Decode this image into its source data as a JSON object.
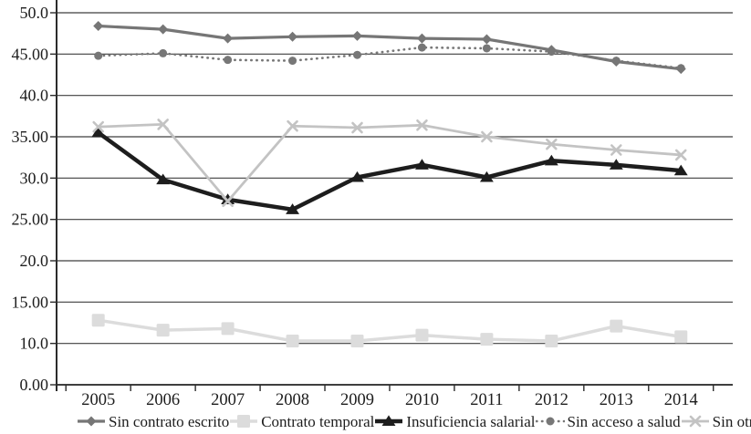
{
  "figure": {
    "background": "#ffffff",
    "grid_color": "#3f3f3f",
    "axis_color": "#2b2b2b",
    "text_color": "#1d1d1d"
  },
  "chart_data": {
    "type": "line",
    "title": "",
    "xlabel": "",
    "ylabel": "",
    "grid": "horizontal",
    "legend_position": "bottom",
    "categories": [
      "2005",
      "2006",
      "2007",
      "2008",
      "2009",
      "2010",
      "2011",
      "2012",
      "2013",
      "2014"
    ],
    "y_axis": {
      "tick_labels_top_to_bottom": [
        "50.0",
        "45.00",
        "40.0",
        "35.00",
        "30.0",
        "25.00",
        "20.0",
        "15.00",
        "10.0",
        "0.00"
      ],
      "unit_per_step": 5
    },
    "series": [
      {
        "name": "Sin contrato escrito",
        "marker": "diamond",
        "line_style": "solid",
        "color": "#767676",
        "line_width": 3.2,
        "marker_size": 11,
        "values": [
          48.4,
          48.0,
          46.9,
          47.1,
          47.2,
          46.9,
          46.8,
          45.5,
          44.1,
          43.2
        ]
      },
      {
        "name": "Contrato temporal",
        "marker": "square",
        "line_style": "solid",
        "color": "#dcdcdc",
        "line_width": 3.5,
        "marker_size": 14,
        "values": [
          12.8,
          11.6,
          11.8,
          10.3,
          10.3,
          11.0,
          10.5,
          10.3,
          12.1,
          10.8
        ]
      },
      {
        "name": "Insuficiencia salarial",
        "marker": "triangle",
        "line_style": "solid",
        "color": "#1d1d1d",
        "line_width": 4.5,
        "marker_size": 12,
        "values": [
          35.5,
          29.8,
          27.4,
          26.2,
          30.1,
          31.6,
          30.1,
          32.1,
          31.6,
          30.9
        ]
      },
      {
        "name": "Sin acceso a salud",
        "marker": "circle",
        "line_style": "dotted",
        "color": "#777777",
        "line_width": 2.6,
        "marker_size": 9,
        "values": [
          44.8,
          45.1,
          44.3,
          44.2,
          44.9,
          45.8,
          45.7,
          45.3,
          44.2,
          43.3
        ]
      },
      {
        "name": "Sin otras prestaciones",
        "marker": "x",
        "line_style": "solid",
        "color": "#c3c3c3",
        "line_width": 2.8,
        "marker_size": 10,
        "values": [
          36.2,
          36.5,
          27.2,
          36.3,
          36.1,
          36.4,
          35.0,
          34.1,
          33.4,
          32.8
        ]
      }
    ]
  }
}
